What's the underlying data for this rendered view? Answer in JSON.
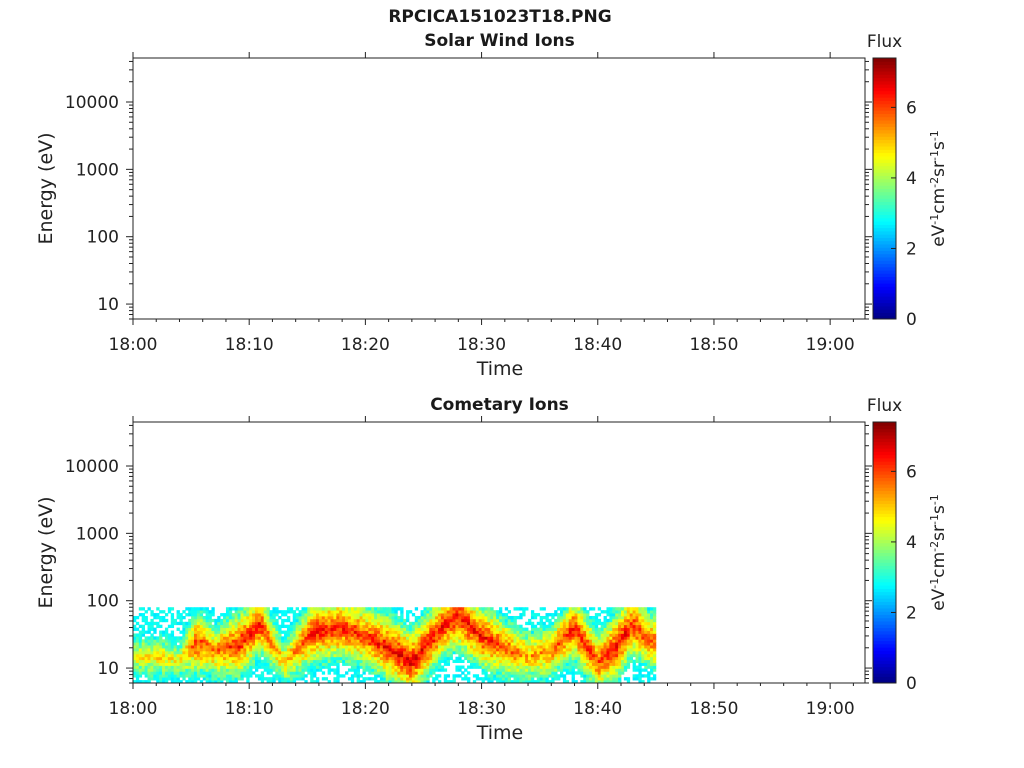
{
  "figure_title": "RPCICA151023T18.PNG",
  "colorbar": {
    "title": "Flux",
    "unit_parts": [
      "eV",
      "-1",
      "cm",
      "-2",
      "sr",
      "-1",
      "s",
      "-1"
    ],
    "ticks": [
      0,
      2,
      4,
      6
    ],
    "range": [
      0,
      7.4
    ],
    "colormap": "jet"
  },
  "chart_data": [
    {
      "type": "heatmap",
      "title": "Solar Wind Ions",
      "xlabel": "Time",
      "ylabel": "Energy (eV)",
      "yscale": "log",
      "ylim": [
        6,
        45000
      ],
      "yticks": [
        10,
        100,
        1000,
        10000
      ],
      "ytick_labels": [
        "10",
        "100",
        "1000",
        "10000"
      ],
      "xlim": [
        "18:00",
        "19:03"
      ],
      "xticks": [
        "18:00",
        "18:10",
        "18:20",
        "18:30",
        "18:40",
        "18:50",
        "19:00"
      ],
      "data": []
    },
    {
      "type": "heatmap",
      "title": "Cometary Ions",
      "xlabel": "Time",
      "ylabel": "Energy (eV)",
      "yscale": "log",
      "ylim": [
        6,
        45000
      ],
      "yticks": [
        10,
        100,
        1000,
        10000
      ],
      "ytick_labels": [
        "10",
        "100",
        "1000",
        "10000"
      ],
      "xlim": [
        "18:00",
        "19:03"
      ],
      "xticks": [
        "18:00",
        "18:10",
        "18:20",
        "18:30",
        "18:40",
        "18:50",
        "19:00"
      ],
      "data_time_range": [
        "18:00",
        "18:45"
      ],
      "data_energy_range_eV": [
        6,
        80
      ],
      "peak_flux": [
        {
          "time": "18:00",
          "energy_eV": 15,
          "flux": 5.3
        },
        {
          "time": "18:02",
          "energy_eV": 15,
          "flux": 5.5
        },
        {
          "time": "18:04",
          "energy_eV": 13,
          "flux": 5.2
        },
        {
          "time": "18:05.5",
          "energy_eV": 25,
          "flux": 6.8
        },
        {
          "time": "18:07",
          "energy_eV": 18,
          "flux": 6.2
        },
        {
          "time": "18:09",
          "energy_eV": 22,
          "flux": 7.0
        },
        {
          "time": "18:11",
          "energy_eV": 45,
          "flux": 6.9
        },
        {
          "time": "18:13",
          "energy_eV": 12,
          "flux": 5.6
        },
        {
          "time": "18:15.5",
          "energy_eV": 35,
          "flux": 7.0
        },
        {
          "time": "18:18",
          "energy_eV": 40,
          "flux": 6.9
        },
        {
          "time": "18:20",
          "energy_eV": 30,
          "flux": 6.8
        },
        {
          "time": "18:22",
          "energy_eV": 20,
          "flux": 7.1
        },
        {
          "time": "18:24",
          "energy_eV": 12,
          "flux": 7.2
        },
        {
          "time": "18:26.5",
          "energy_eV": 40,
          "flux": 7.0
        },
        {
          "time": "18:28",
          "energy_eV": 60,
          "flux": 7.1
        },
        {
          "time": "18:30",
          "energy_eV": 30,
          "flux": 7.0
        },
        {
          "time": "18:32",
          "energy_eV": 20,
          "flux": 6.6
        },
        {
          "time": "18:34",
          "energy_eV": 15,
          "flux": 6.0
        },
        {
          "time": "18:36",
          "energy_eV": 18,
          "flux": 6.2
        },
        {
          "time": "18:38",
          "energy_eV": 40,
          "flux": 7.0
        },
        {
          "time": "18:40",
          "energy_eV": 12,
          "flux": 6.7
        },
        {
          "time": "18:41.5",
          "energy_eV": 20,
          "flux": 7.2
        },
        {
          "time": "18:43",
          "energy_eV": 45,
          "flux": 6.9
        },
        {
          "time": "18:44.5",
          "energy_eV": 25,
          "flux": 6.5
        }
      ]
    }
  ]
}
